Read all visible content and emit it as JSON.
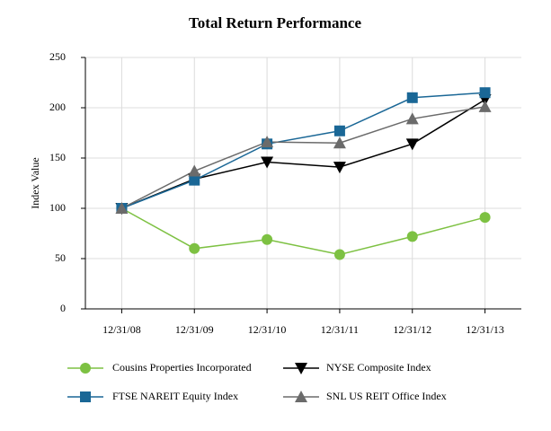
{
  "chart_data": {
    "type": "line",
    "title": "Total Return Performance",
    "y_label": "Index Value",
    "categories": [
      "12/31/08",
      "12/31/09",
      "12/31/10",
      "12/31/11",
      "12/31/12",
      "12/31/13"
    ],
    "series": [
      {
        "name": "Cousins Properties Incorporated",
        "color": "#7dc142",
        "marker": "circle",
        "values": [
          100,
          60,
          69,
          54,
          72,
          91
        ]
      },
      {
        "name": "NYSE Composite Index",
        "color": "#000000",
        "marker": "triangle-down",
        "values": [
          100,
          129,
          146,
          141,
          164,
          208
        ]
      },
      {
        "name": "FTSE NAREIT Equity Index",
        "color": "#1a6796",
        "marker": "square",
        "values": [
          100,
          128,
          164,
          177,
          210,
          215
        ]
      },
      {
        "name": "SNL US REIT Office Index",
        "color": "#6b6b6b",
        "marker": "triangle-up",
        "values": [
          100,
          137,
          166,
          165,
          189,
          201
        ]
      }
    ],
    "ylim": [
      0,
      250
    ],
    "yticks": [
      0,
      50,
      100,
      150,
      200,
      250
    ],
    "grid": true
  }
}
